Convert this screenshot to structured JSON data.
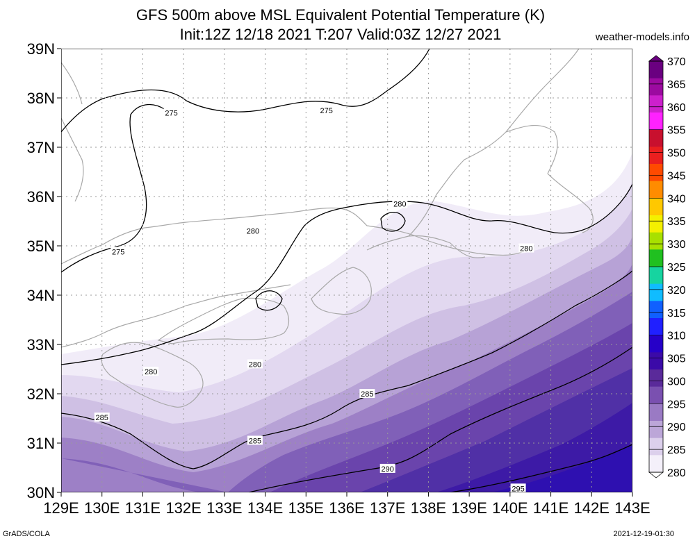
{
  "header": {
    "title": "GFS 500m above MSL Equivalent Potential Temperature (K)",
    "subtitle": "Init:12Z 12/18 2021 T:207 Valid:03Z 12/27 2021",
    "site": "weather-models.info"
  },
  "map": {
    "lat_labels": [
      "39N",
      "38N",
      "37N",
      "36N",
      "35N",
      "34N",
      "33N",
      "32N",
      "31N",
      "30N"
    ],
    "lon_labels": [
      "129E",
      "130E",
      "131E",
      "132E",
      "133E",
      "134E",
      "135E",
      "136E",
      "137E",
      "138E",
      "139E",
      "140E",
      "141E",
      "142E",
      "143E"
    ],
    "contour_labels": [
      {
        "text": "275",
        "lon": 131.7,
        "lat": 37.7
      },
      {
        "text": "275",
        "lon": 135.5,
        "lat": 37.75
      },
      {
        "text": "275",
        "lon": 130.4,
        "lat": 34.88
      },
      {
        "text": "280",
        "lon": 133.7,
        "lat": 35.3
      },
      {
        "text": "280",
        "lon": 137.3,
        "lat": 35.85
      },
      {
        "text": "280",
        "lon": 140.4,
        "lat": 34.95
      },
      {
        "text": "280",
        "lon": 133.75,
        "lat": 32.6
      },
      {
        "text": "280",
        "lon": 131.2,
        "lat": 32.45
      },
      {
        "text": "285",
        "lon": 130.0,
        "lat": 31.52
      },
      {
        "text": "285",
        "lon": 133.75,
        "lat": 31.05
      },
      {
        "text": "285",
        "lon": 136.5,
        "lat": 32.0
      },
      {
        "text": "290",
        "lon": 137.0,
        "lat": 30.48
      },
      {
        "text": "295",
        "lon": 140.2,
        "lat": 30.08
      }
    ],
    "colors": {
      "coast": "#a8a8a8",
      "grid": "#9a9a9a",
      "contour": "#000000"
    }
  },
  "legend": {
    "labels": [
      "370",
      "365",
      "360",
      "355",
      "350",
      "345",
      "340",
      "335",
      "330",
      "325",
      "320",
      "315",
      "310",
      "305",
      "300",
      "295",
      "290",
      "285",
      "280"
    ],
    "colors": [
      "#6a0080",
      "#9c0aa0",
      "#cc20cc",
      "#ff22ff",
      "#c8102e",
      "#ea1f1f",
      "#ff4a00",
      "#ff8c00",
      "#ffc800",
      "#f4f000",
      "#a8e000",
      "#20c020",
      "#16d4a0",
      "#10bcff",
      "#1060ff",
      "#2020ff",
      "#2600c8",
      "#3b0aa8",
      "#5a2a9a",
      "#7a50b0",
      "#9a7ac4",
      "#bca6d8",
      "#dcd0ec",
      "#f4f0fa"
    ]
  },
  "footer": {
    "left": "GrADS/COLA",
    "right": "2021-12-19-01:30"
  }
}
